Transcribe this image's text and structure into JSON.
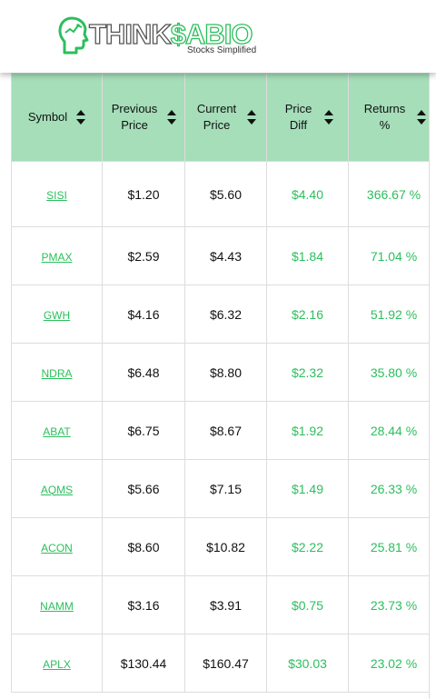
{
  "brand": {
    "name_part1": "THINK",
    "name_part2": "$ABIO",
    "tagline": "Stocks Simplified",
    "colors": {
      "green": "#2bbf5c",
      "header_bg": "#a5deb9",
      "dark": "#555555"
    }
  },
  "table": {
    "columns": [
      {
        "label": "Symbol",
        "sort_icon": "sort-updown-icon"
      },
      {
        "label": "Previous Price",
        "sort_icon": "sort-updown-icon"
      },
      {
        "label": "Current Price",
        "sort_icon": "sort-updown-icon"
      },
      {
        "label": "Price Diff",
        "sort_icon": "sort-updown-icon"
      },
      {
        "label": "Returns %",
        "sort_icon": "sort-updown-icon"
      }
    ],
    "rows": [
      {
        "symbol": "SISI",
        "previous": "$1.20",
        "current": "$5.60",
        "diff": "$4.40",
        "returns": "366.67 %"
      },
      {
        "symbol": "PMAX",
        "previous": "$2.59",
        "current": "$4.43",
        "diff": "$1.84",
        "returns": "71.04 %"
      },
      {
        "symbol": "GWH",
        "previous": "$4.16",
        "current": "$6.32",
        "diff": "$2.16",
        "returns": "51.92 %"
      },
      {
        "symbol": "NDRA",
        "previous": "$6.48",
        "current": "$8.80",
        "diff": "$2.32",
        "returns": "35.80 %"
      },
      {
        "symbol": "ABAT",
        "previous": "$6.75",
        "current": "$8.67",
        "diff": "$1.92",
        "returns": "28.44 %"
      },
      {
        "symbol": "AQMS",
        "previous": "$5.66",
        "current": "$7.15",
        "diff": "$1.49",
        "returns": "26.33 %"
      },
      {
        "symbol": "ACON",
        "previous": "$8.60",
        "current": "$10.82",
        "diff": "$2.22",
        "returns": "25.81 %"
      },
      {
        "symbol": "NAMM",
        "previous": "$3.16",
        "current": "$3.91",
        "diff": "$0.75",
        "returns": "23.73 %"
      },
      {
        "symbol": "APLX",
        "previous": "$130.44",
        "current": "$160.47",
        "diff": "$30.03",
        "returns": "23.02 %"
      }
    ]
  }
}
